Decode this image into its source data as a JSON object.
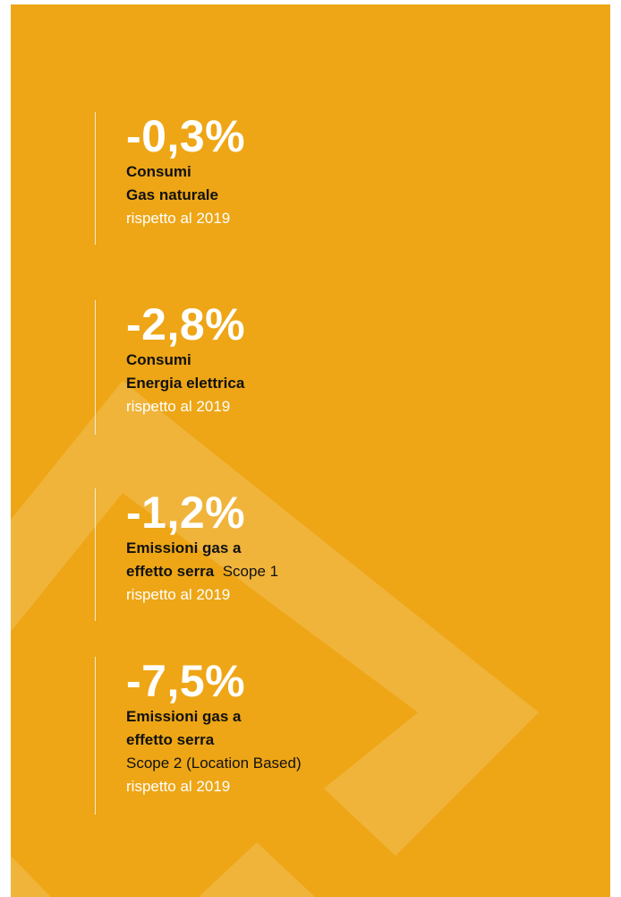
{
  "items": [
    {
      "value": "-0,3%",
      "lines": [
        "Consumi",
        "Gas naturale"
      ],
      "comparison": "rispetto al 2019"
    },
    {
      "value": "-2,8%",
      "lines": [
        "Consumi",
        "Energia elettrica"
      ],
      "comparison": "rispetto al 2019"
    },
    {
      "value": "-1,2%",
      "lines": [
        "Emissioni gas a",
        "effetto serra"
      ],
      "scope": "Scope 1",
      "comparison": "rispetto al 2019"
    },
    {
      "value": "-7,5%",
      "lines": [
        "Emissioni gas a",
        "effetto serra"
      ],
      "scope": "Scope 2 (Location Based)",
      "comparison": "rispetto al 2019"
    }
  ]
}
